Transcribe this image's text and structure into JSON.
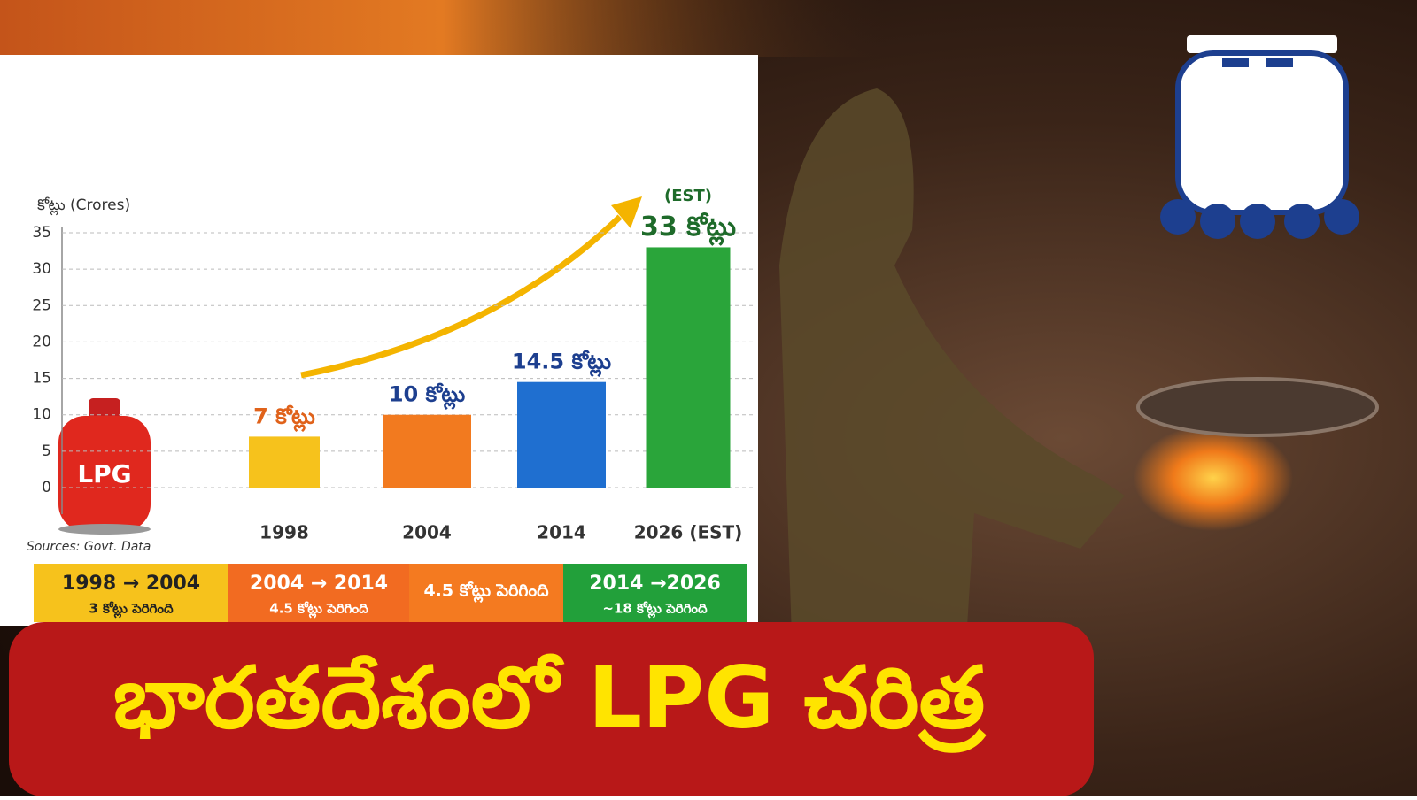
{
  "chart_data": {
    "type": "bar",
    "y_label": "కోట్లు (Crores)",
    "source": "Sources: Govt. Data",
    "categories": [
      "1998",
      "2004",
      "2014",
      "2026 (EST)"
    ],
    "values": [
      7,
      10,
      14.5,
      33
    ],
    "value_labels": [
      "7 కోట్లు",
      "10 కోట్లు",
      "14.5 కోట్లు",
      "33 కోట్లు"
    ],
    "colors": [
      "#f6c21c",
      "#f27a1f",
      "#1f6fd0",
      "#2aa53a"
    ],
    "annotation": "(EST)",
    "ylim": [
      0,
      35
    ],
    "yticks": [
      0,
      5,
      10,
      15,
      20,
      25,
      30,
      35
    ],
    "grid": true
  },
  "cylinder_label": "LPG",
  "periods": [
    {
      "label": "1998 → 2004",
      "note": "3 కోట్లు పెరిగింది",
      "color": "#f6c21c"
    },
    {
      "label": "2004 → 2014",
      "note": "4.5 కోట్లు పెరిగింది",
      "color": "#f26b21"
    },
    {
      "label": "4.5 కోట్లు పెరిగింది",
      "color": "#f47a20"
    },
    {
      "label": "2014 →2026",
      "note": "~18 కోట్లు పెరిగింది",
      "color": "#22a03a"
    }
  ],
  "banner": "భారతదేశంలో LPG చరిత్ర"
}
